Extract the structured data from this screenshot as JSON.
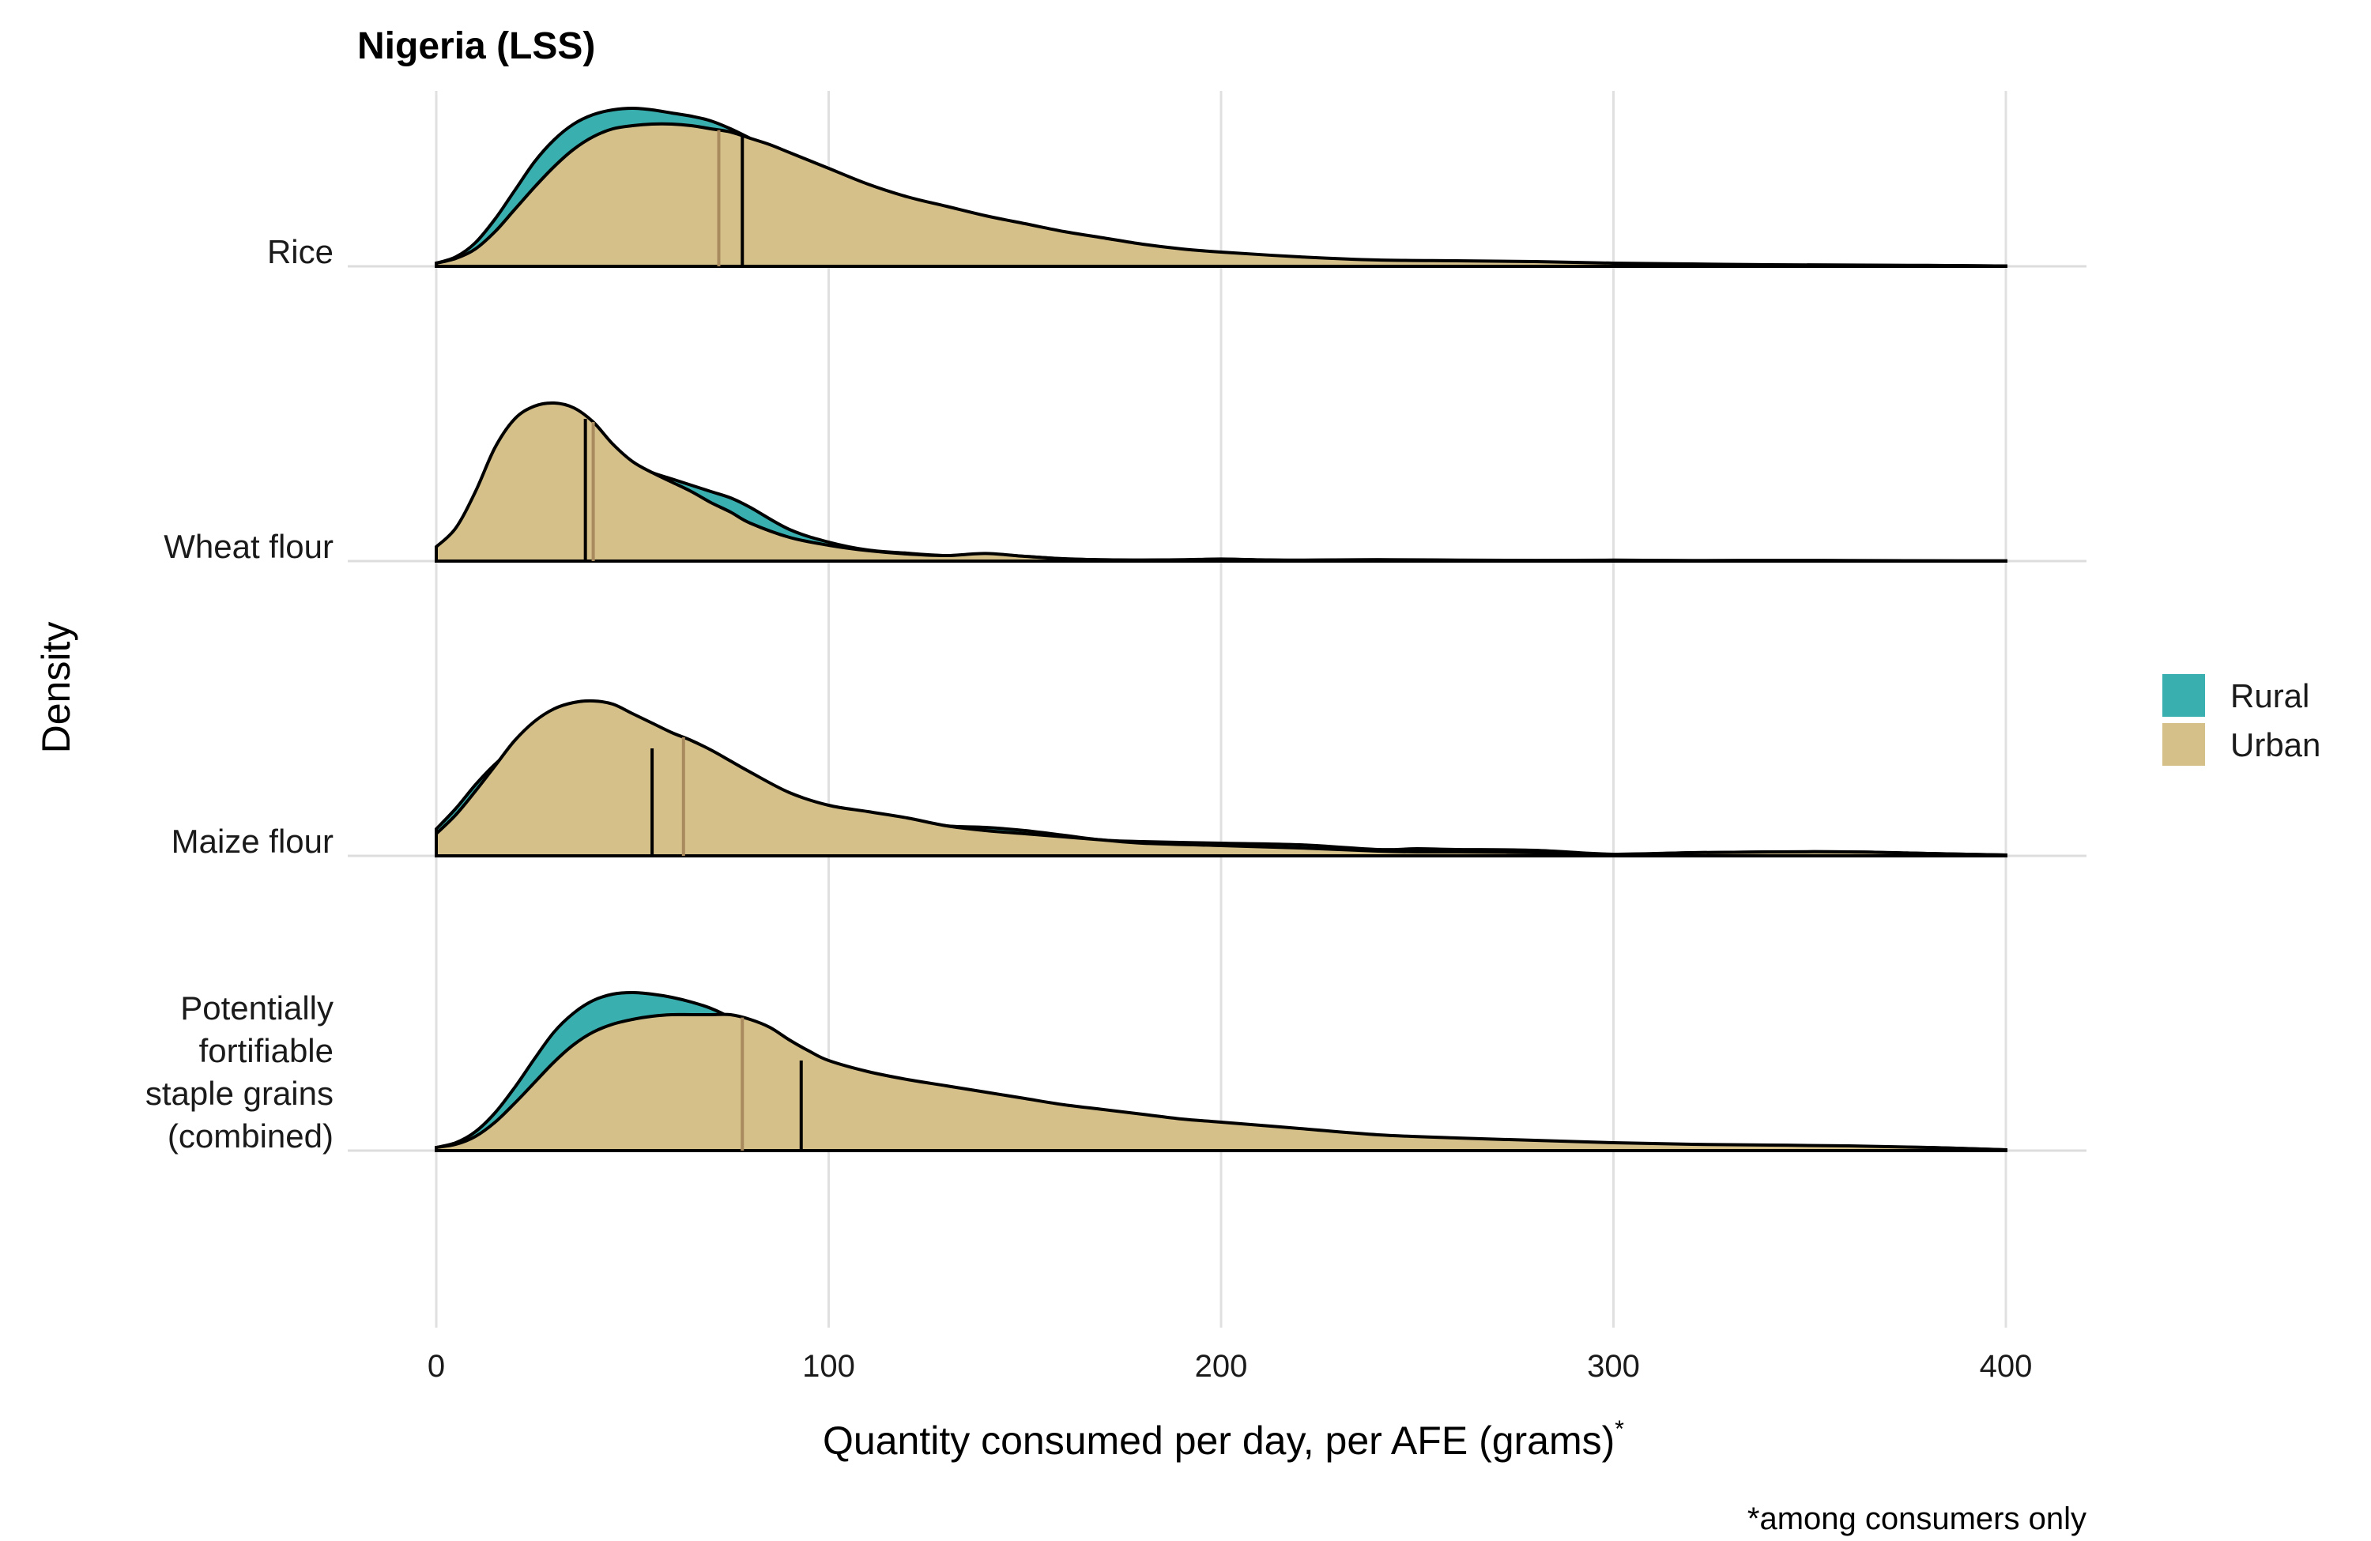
{
  "chart_data": {
    "type": "ridgeline-density",
    "title": "Nigeria (LSS)",
    "xlabel": "Quantity consumed per day, per AFE (grams)",
    "xlabel_superscript": "*",
    "ylabel": "Density",
    "caption": "*among consumers only",
    "xlim": [
      0,
      400
    ],
    "x_ticks": [
      0,
      100,
      200,
      300,
      400
    ],
    "grid": "vertical major",
    "legend_placement": "right",
    "legend": [
      {
        "name": "Rural",
        "color": "#3AAFAF"
      },
      {
        "name": "Urban",
        "color": "#D6C08A"
      }
    ],
    "overlap_color": "#B1B183",
    "categories": [
      "Rice",
      "Wheat flour",
      "Maize flour",
      "Potentially fortifiable staple grains (combined)"
    ],
    "category_label_lines": [
      [
        "Rice"
      ],
      [
        "Wheat flour"
      ],
      [
        "Maize flour"
      ],
      [
        "Potentially",
        "fortifiable",
        "staple grains",
        "(combined)"
      ]
    ],
    "ridges": [
      {
        "category": "Rice",
        "series": [
          {
            "name": "Rural",
            "median": 78,
            "x": [
              0,
              5,
              10,
              15,
              20,
              25,
              30,
              35,
              40,
              45,
              50,
              55,
              60,
              65,
              70,
              75,
              80,
              85,
              90,
              95,
              100,
              110,
              120,
              130,
              140,
              150,
              160,
              170,
              180,
              190,
              200,
              220,
              240,
              260,
              280,
              300,
              320,
              340,
              360,
              380,
              400
            ],
            "y": [
              0.02,
              0.06,
              0.15,
              0.3,
              0.48,
              0.66,
              0.8,
              0.9,
              0.96,
              0.99,
              1.0,
              0.99,
              0.97,
              0.95,
              0.92,
              0.87,
              0.81,
              0.75,
              0.69,
              0.63,
              0.57,
              0.46,
              0.4,
              0.35,
              0.29,
              0.23,
              0.18,
              0.15,
              0.12,
              0.09,
              0.07,
              0.05,
              0.03,
              0.025,
              0.02,
              0.015,
              0.01,
              0.008,
              0.006,
              0.005,
              0.002
            ]
          },
          {
            "name": "Urban",
            "median": 72,
            "x": [
              0,
              5,
              10,
              15,
              20,
              25,
              30,
              35,
              40,
              45,
              50,
              55,
              60,
              65,
              70,
              75,
              80,
              85,
              90,
              95,
              100,
              110,
              120,
              130,
              140,
              150,
              160,
              170,
              180,
              190,
              200,
              220,
              240,
              260,
              280,
              300,
              320,
              340,
              360,
              380,
              400
            ],
            "y": [
              0.02,
              0.05,
              0.11,
              0.22,
              0.36,
              0.5,
              0.63,
              0.74,
              0.82,
              0.87,
              0.89,
              0.9,
              0.9,
              0.89,
              0.87,
              0.85,
              0.81,
              0.77,
              0.72,
              0.67,
              0.62,
              0.52,
              0.44,
              0.38,
              0.32,
              0.27,
              0.22,
              0.18,
              0.14,
              0.11,
              0.09,
              0.06,
              0.04,
              0.035,
              0.03,
              0.02,
              0.015,
              0.01,
              0.008,
              0.006,
              0.002
            ]
          }
        ]
      },
      {
        "category": "Wheat flour",
        "series": [
          {
            "name": "Rural",
            "median": 38,
            "x": [
              0,
              5,
              10,
              15,
              20,
              25,
              30,
              35,
              40,
              45,
              50,
              55,
              60,
              65,
              70,
              75,
              80,
              90,
              100,
              110,
              120,
              130,
              140,
              150,
              160,
              170,
              180,
              190,
              200,
              210,
              220,
              240,
              260,
              280,
              300,
              320,
              340,
              360,
              380,
              400
            ],
            "y": [
              0.09,
              0.2,
              0.4,
              0.63,
              0.82,
              0.94,
              0.98,
              0.96,
              0.86,
              0.72,
              0.62,
              0.56,
              0.52,
              0.48,
              0.44,
              0.4,
              0.34,
              0.2,
              0.12,
              0.07,
              0.05,
              0.035,
              0.045,
              0.03,
              0.015,
              0.008,
              0.006,
              0.008,
              0.013,
              0.007,
              0.005,
              0.008,
              0.005,
              0.004,
              0.005,
              0.003,
              0.004,
              0.003,
              0.002,
              0.001
            ]
          },
          {
            "name": "Urban",
            "median": 40,
            "x": [
              0,
              5,
              10,
              15,
              20,
              25,
              30,
              35,
              40,
              45,
              50,
              55,
              60,
              65,
              70,
              75,
              80,
              90,
              100,
              110,
              120,
              130,
              140,
              150,
              160,
              170,
              180,
              190,
              200,
              210,
              220,
              240,
              260,
              280,
              300,
              320,
              340,
              360,
              380,
              400
            ],
            "y": [
              0.09,
              0.21,
              0.44,
              0.72,
              0.9,
              0.98,
              1.0,
              0.97,
              0.88,
              0.74,
              0.63,
              0.56,
              0.5,
              0.44,
              0.37,
              0.31,
              0.24,
              0.15,
              0.1,
              0.066,
              0.045,
              0.035,
              0.048,
              0.03,
              0.014,
              0.008,
              0.006,
              0.008,
              0.012,
              0.008,
              0.006,
              0.009,
              0.006,
              0.004,
              0.006,
              0.003,
              0.004,
              0.003,
              0.002,
              0.001
            ]
          }
        ]
      },
      {
        "category": "Maize flour",
        "series": [
          {
            "name": "Rural",
            "median": 55,
            "x": [
              0,
              5,
              10,
              15,
              20,
              25,
              30,
              35,
              40,
              45,
              50,
              55,
              60,
              65,
              70,
              75,
              80,
              90,
              100,
              110,
              120,
              130,
              140,
              150,
              160,
              170,
              180,
              200,
              220,
              240,
              250,
              260,
              280,
              300,
              320,
              340,
              360,
              380,
              400
            ],
            "y": [
              0.17,
              0.3,
              0.45,
              0.58,
              0.68,
              0.73,
              0.75,
              0.75,
              0.74,
              0.72,
              0.7,
              0.68,
              0.66,
              0.64,
              0.61,
              0.56,
              0.5,
              0.38,
              0.31,
              0.27,
              0.23,
              0.19,
              0.18,
              0.16,
              0.13,
              0.1,
              0.09,
              0.08,
              0.07,
              0.04,
              0.045,
              0.04,
              0.035,
              0.01,
              0.02,
              0.025,
              0.025,
              0.015,
              0.005
            ]
          },
          {
            "name": "Urban",
            "median": 63,
            "x": [
              0,
              5,
              10,
              15,
              20,
              25,
              30,
              35,
              40,
              45,
              50,
              55,
              60,
              65,
              70,
              75,
              80,
              90,
              100,
              110,
              120,
              130,
              140,
              150,
              160,
              170,
              180,
              200,
              220,
              240,
              250,
              260,
              280,
              300,
              320,
              340,
              360,
              380,
              400
            ],
            "y": [
              0.14,
              0.26,
              0.41,
              0.57,
              0.73,
              0.85,
              0.93,
              0.97,
              0.98,
              0.96,
              0.9,
              0.84,
              0.78,
              0.73,
              0.67,
              0.6,
              0.53,
              0.4,
              0.32,
              0.28,
              0.24,
              0.19,
              0.16,
              0.14,
              0.12,
              0.1,
              0.08,
              0.065,
              0.05,
              0.03,
              0.025,
              0.025,
              0.02,
              0.01,
              0.02,
              0.025,
              0.025,
              0.015,
              0.005
            ]
          }
        ]
      },
      {
        "category": "Potentially fortifiable staple grains (combined)",
        "series": [
          {
            "name": "Rural",
            "median": 93,
            "x": [
              0,
              5,
              10,
              15,
              20,
              25,
              30,
              35,
              40,
              45,
              50,
              55,
              60,
              65,
              70,
              75,
              80,
              85,
              90,
              95,
              100,
              110,
              120,
              130,
              140,
              150,
              160,
              170,
              180,
              190,
              200,
              220,
              240,
              260,
              280,
              300,
              320,
              340,
              360,
              380,
              400
            ],
            "y": [
              0.02,
              0.05,
              0.12,
              0.24,
              0.4,
              0.58,
              0.75,
              0.87,
              0.95,
              0.99,
              1.0,
              0.99,
              0.97,
              0.94,
              0.9,
              0.84,
              0.76,
              0.68,
              0.6,
              0.55,
              0.5,
              0.4,
              0.35,
              0.33,
              0.3,
              0.27,
              0.24,
              0.22,
              0.19,
              0.17,
              0.15,
              0.12,
              0.08,
              0.07,
              0.06,
              0.04,
              0.03,
              0.025,
              0.025,
              0.02,
              0.005
            ]
          },
          {
            "name": "Urban",
            "median": 78,
            "x": [
              0,
              5,
              10,
              15,
              20,
              25,
              30,
              35,
              40,
              45,
              50,
              55,
              60,
              65,
              70,
              75,
              80,
              85,
              90,
              95,
              100,
              110,
              120,
              130,
              140,
              150,
              160,
              170,
              180,
              190,
              200,
              220,
              240,
              260,
              280,
              300,
              320,
              340,
              360,
              380,
              400
            ],
            "y": [
              0.02,
              0.04,
              0.09,
              0.18,
              0.3,
              0.43,
              0.56,
              0.67,
              0.75,
              0.8,
              0.83,
              0.85,
              0.86,
              0.86,
              0.86,
              0.86,
              0.83,
              0.78,
              0.7,
              0.63,
              0.57,
              0.5,
              0.45,
              0.41,
              0.37,
              0.33,
              0.29,
              0.26,
              0.23,
              0.2,
              0.18,
              0.14,
              0.1,
              0.08,
              0.065,
              0.05,
              0.04,
              0.035,
              0.03,
              0.02,
              0.005
            ]
          }
        ]
      }
    ]
  }
}
